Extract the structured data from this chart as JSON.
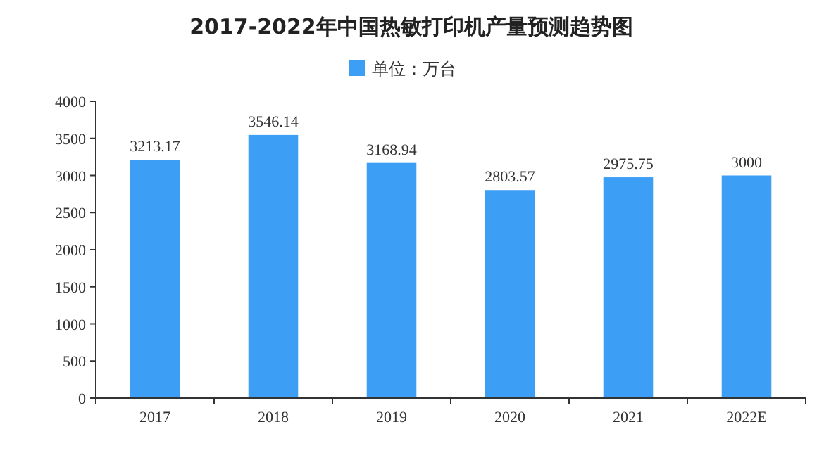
{
  "chart_data": {
    "type": "bar",
    "title": "2017-2022年中国热敏打印机产量预测趋势图",
    "categories": [
      "2017",
      "2018",
      "2019",
      "2020",
      "2021",
      "2022E"
    ],
    "series": [
      {
        "name": "单位：万台",
        "color": "#3d9ef5",
        "values": [
          3213.17,
          3546.14,
          3168.94,
          2803.57,
          2975.75,
          3000
        ]
      }
    ],
    "ylim": [
      0,
      4000
    ],
    "yticks": [
      0,
      500,
      1000,
      1500,
      2000,
      2500,
      3000,
      3500,
      4000
    ],
    "data_labels": true,
    "legend": "top"
  }
}
